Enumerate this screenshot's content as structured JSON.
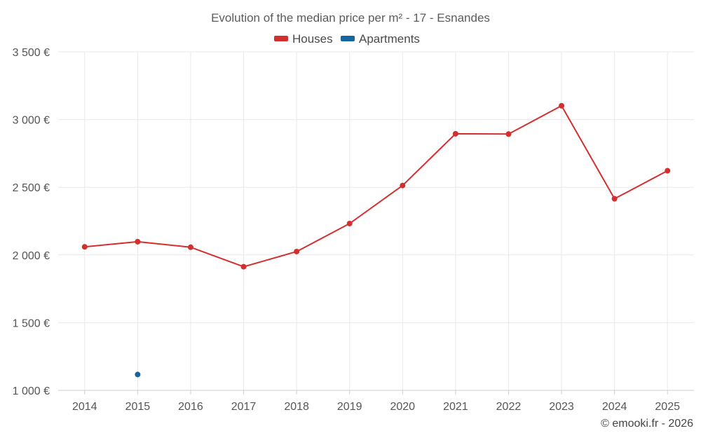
{
  "chart_data": {
    "type": "line",
    "title": "Evolution of the median price per m² - 17 - Esnandes",
    "categories": [
      "2014",
      "2015",
      "2016",
      "2017",
      "2018",
      "2019",
      "2020",
      "2021",
      "2022",
      "2023",
      "2024",
      "2025"
    ],
    "series": [
      {
        "name": "Houses",
        "color": "#d32f2f",
        "values": [
          2060,
          2098,
          2057,
          1913,
          2025,
          2232,
          2513,
          2895,
          2893,
          3102,
          2415,
          2622
        ]
      },
      {
        "name": "Apartments",
        "color": "#1565a0",
        "values": [
          null,
          1117,
          null,
          null,
          null,
          null,
          null,
          null,
          null,
          null,
          null,
          null
        ]
      }
    ],
    "y_ticks": [
      1000,
      1500,
      2000,
      2500,
      3000,
      3500
    ],
    "y_tick_labels": [
      "1 000 €",
      "1 500 €",
      "2 000 €",
      "2 500 €",
      "3 000 €",
      "3 500 €"
    ],
    "ylim": [
      1000,
      3500
    ],
    "xlabel": "",
    "ylabel": "",
    "grid": true,
    "legend_position": "top-center"
  },
  "credit": "© emooki.fr - 2026"
}
